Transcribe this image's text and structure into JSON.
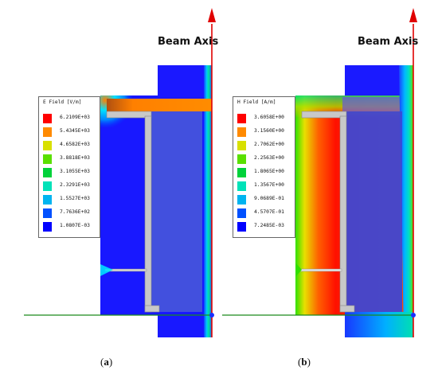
{
  "panel_a": {
    "caption": "(a)",
    "caption_letter": "a",
    "beam_axis_label": "Beam Axis",
    "legend_title": "E Field [V/m]",
    "legend_values": [
      "6.2109E+03",
      "5.4345E+03",
      "4.6582E+03",
      "3.8818E+03",
      "3.1055E+03",
      "2.3291E+03",
      "1.5527E+03",
      "7.7636E+02",
      "1.0807E-03"
    ]
  },
  "panel_b": {
    "caption": "(b)",
    "caption_letter": "b",
    "beam_axis_label": "Beam Axis",
    "legend_title": "H Field [A/m]",
    "legend_values": [
      "3.6058E+00",
      "3.1560E+00",
      "2.7062E+00",
      "2.2563E+00",
      "1.8065E+00",
      "1.3567E+00",
      "9.0689E-01",
      "4.5707E-01",
      "7.2485E-03"
    ]
  },
  "colors": {
    "scale": [
      "#ff0000",
      "#ff8a00",
      "#d8e000",
      "#5ae000",
      "#00d23a",
      "#00e2b8",
      "#00b4f0",
      "#0050ff",
      "#0000ff"
    ],
    "beam_arrow": "#e00000",
    "ground_line": "#1a8a1a"
  }
}
